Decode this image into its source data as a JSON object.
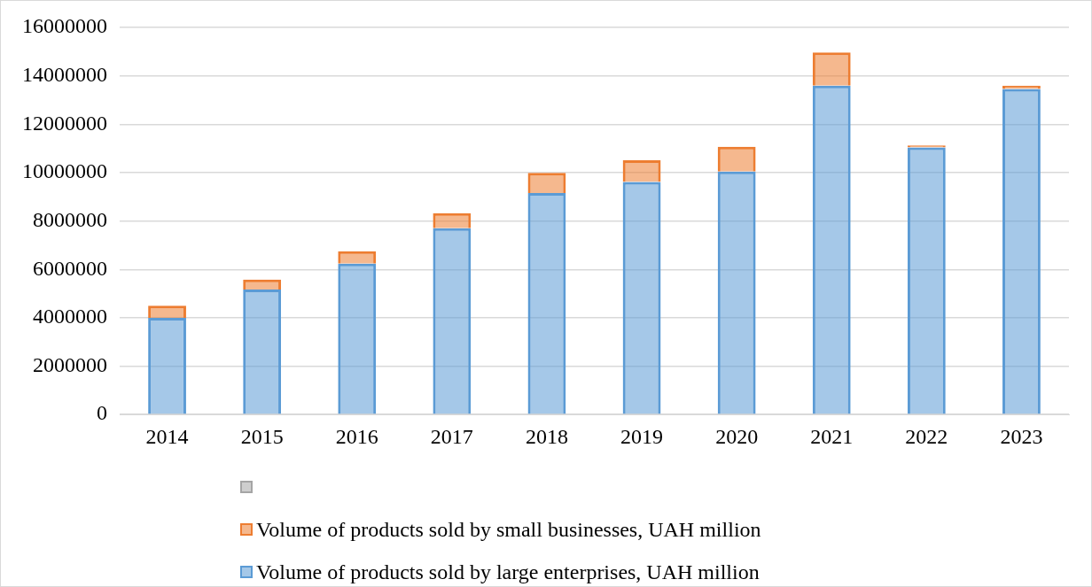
{
  "chart_data": {
    "type": "bar",
    "stacked": true,
    "categories": [
      "2014",
      "2015",
      "2016",
      "2017",
      "2018",
      "2019",
      "2020",
      "2021",
      "2022",
      "2023"
    ],
    "series": [
      {
        "name": "Volume of products sold by large enterprises, UAH million",
        "color": "#5b9bd5",
        "values": [
          4000000,
          5170000,
          6240000,
          7700000,
          9160000,
          9610000,
          10040000,
          13590000,
          11040000,
          13460000
        ]
      },
      {
        "name": "Volume of products sold by small businesses, UAH million",
        "color": "#ed7d31",
        "values": [
          500000,
          410000,
          510000,
          620000,
          830000,
          900000,
          1030000,
          1380000,
          80000,
          130000
        ]
      },
      {
        "color": "#a5a5a5",
        "values": [
          null,
          null,
          null,
          null,
          null,
          null,
          null,
          null,
          null,
          null
        ]
      }
    ],
    "ylim": [
      0,
      16000000
    ],
    "yticks": [
      0,
      2000000,
      4000000,
      6000000,
      8000000,
      10000000,
      12000000,
      14000000,
      16000000
    ],
    "grid": "y",
    "legend": "bottom"
  }
}
